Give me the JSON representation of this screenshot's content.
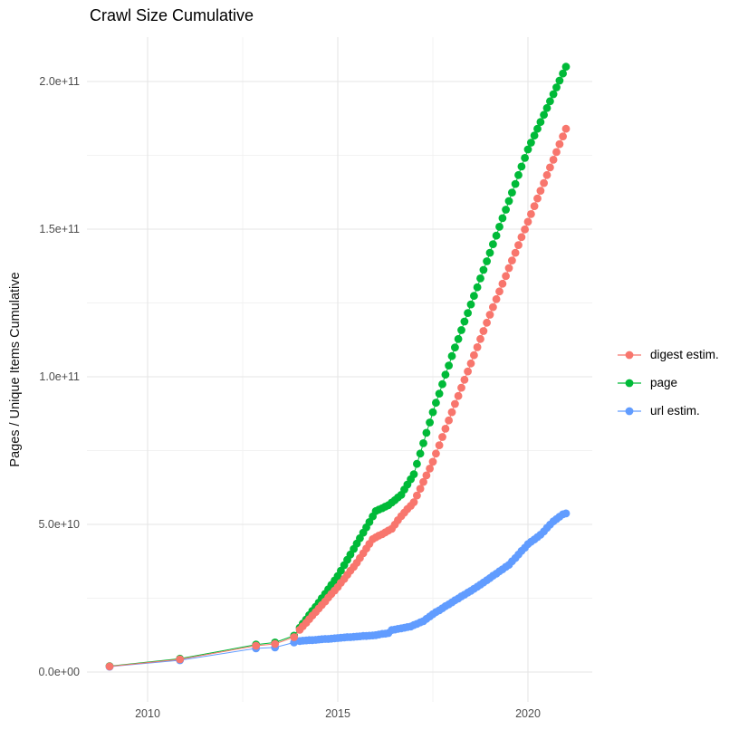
{
  "title": "Crawl Size Cumulative",
  "y_axis_title": "Pages / Unique Items Cumulative",
  "colors": {
    "digest": "#F8766D",
    "page": "#00BA38",
    "url": "#619CFF",
    "grid_major": "#e5e5e5",
    "grid_minor": "#f2f2f2",
    "axis_text": "#4d4d4d",
    "title_text": "#000000"
  },
  "legend": [
    {
      "id": "digest",
      "label": "digest estim.",
      "color": "#F8766D"
    },
    {
      "id": "page",
      "label": "page",
      "color": "#00BA38"
    },
    {
      "id": "url",
      "label": "url estim.",
      "color": "#619CFF"
    }
  ],
  "chart_data": {
    "type": "scatter",
    "title": "Crawl Size Cumulative",
    "xlabel": "",
    "ylabel": "Pages / Unique Items Cumulative",
    "y_unit_multiplier": 1000000000.0,
    "xlim": [
      2008.4,
      2021.7
    ],
    "ylim_e9": [
      -10,
      215
    ],
    "grid": true,
    "legend_position": "right",
    "x_ticks": [
      {
        "label": "2010",
        "value": 2010
      },
      {
        "label": "2015",
        "value": 2015
      },
      {
        "label": "2020",
        "value": 2020
      }
    ],
    "x_minor": [
      2012.5,
      2017.5
    ],
    "y_ticks": [
      {
        "label": "0.0e+00",
        "value": 0
      },
      {
        "label": "5.0e+10",
        "value": 50
      },
      {
        "label": "1.0e+11",
        "value": 100
      },
      {
        "label": "1.5e+11",
        "value": 150
      },
      {
        "label": "2.0e+11",
        "value": 200
      }
    ],
    "y_minor": [
      25,
      75,
      125,
      175
    ],
    "series": [
      {
        "name": "page",
        "color": "#00BA38",
        "points": [
          [
            2009.0,
            2.0
          ],
          [
            2010.85,
            4.5
          ],
          [
            2012.85,
            9.3
          ],
          [
            2013.35,
            10.0
          ],
          [
            2013.85,
            12.3
          ],
          [
            2014.0,
            15.0
          ],
          [
            2014.08,
            16.4
          ],
          [
            2014.17,
            17.8
          ],
          [
            2014.25,
            19.3
          ],
          [
            2014.33,
            20.7
          ],
          [
            2014.42,
            22.1
          ],
          [
            2014.5,
            23.5
          ],
          [
            2014.58,
            25.0
          ],
          [
            2014.67,
            26.5
          ],
          [
            2014.75,
            28.0
          ],
          [
            2014.83,
            29.5
          ],
          [
            2014.92,
            31.0
          ],
          [
            2015.0,
            32.5
          ],
          [
            2015.08,
            34.3
          ],
          [
            2015.17,
            36.2
          ],
          [
            2015.25,
            38.0
          ],
          [
            2015.33,
            39.8
          ],
          [
            2015.42,
            41.7
          ],
          [
            2015.5,
            43.5
          ],
          [
            2015.58,
            45.3
          ],
          [
            2015.67,
            47.2
          ],
          [
            2015.75,
            49.0
          ],
          [
            2015.83,
            50.8
          ],
          [
            2015.92,
            52.7
          ],
          [
            2016.0,
            54.5
          ],
          [
            2016.08,
            55.0
          ],
          [
            2016.17,
            55.5
          ],
          [
            2016.25,
            56.0
          ],
          [
            2016.33,
            56.5
          ],
          [
            2016.42,
            57.4
          ],
          [
            2016.5,
            58.2
          ],
          [
            2016.58,
            59.1
          ],
          [
            2016.67,
            60.0
          ],
          [
            2016.75,
            61.8
          ],
          [
            2016.83,
            63.5
          ],
          [
            2016.92,
            65.3
          ],
          [
            2017.0,
            67.0
          ],
          [
            2017.08,
            70.5
          ],
          [
            2017.17,
            74.0
          ],
          [
            2017.25,
            77.5
          ],
          [
            2017.33,
            81.0
          ],
          [
            2017.42,
            84.5
          ],
          [
            2017.5,
            88.0
          ],
          [
            2017.58,
            91.2
          ],
          [
            2017.67,
            94.3
          ],
          [
            2017.75,
            97.5
          ],
          [
            2017.83,
            100.7
          ],
          [
            2017.92,
            103.8
          ],
          [
            2018.0,
            107.0
          ],
          [
            2018.08,
            109.9
          ],
          [
            2018.17,
            112.8
          ],
          [
            2018.25,
            115.8
          ],
          [
            2018.33,
            118.7
          ],
          [
            2018.42,
            121.6
          ],
          [
            2018.5,
            124.5
          ],
          [
            2018.58,
            127.4
          ],
          [
            2018.67,
            130.3
          ],
          [
            2018.75,
            133.3
          ],
          [
            2018.83,
            136.2
          ],
          [
            2018.92,
            139.1
          ],
          [
            2019.0,
            142.0
          ],
          [
            2019.08,
            144.9
          ],
          [
            2019.17,
            147.8
          ],
          [
            2019.25,
            150.8
          ],
          [
            2019.33,
            153.7
          ],
          [
            2019.42,
            156.6
          ],
          [
            2019.5,
            159.5
          ],
          [
            2019.58,
            162.4
          ],
          [
            2019.67,
            165.3
          ],
          [
            2019.75,
            168.3
          ],
          [
            2019.83,
            171.2
          ],
          [
            2019.92,
            174.1
          ],
          [
            2020.0,
            177.0
          ],
          [
            2020.08,
            179.3
          ],
          [
            2020.17,
            181.7
          ],
          [
            2020.25,
            184.0
          ],
          [
            2020.33,
            186.3
          ],
          [
            2020.42,
            188.7
          ],
          [
            2020.5,
            191.0
          ],
          [
            2020.58,
            193.3
          ],
          [
            2020.67,
            195.7
          ],
          [
            2020.75,
            198.0
          ],
          [
            2020.83,
            200.3
          ],
          [
            2020.92,
            202.7
          ],
          [
            2021.0,
            205.0
          ]
        ]
      },
      {
        "name": "url estim.",
        "color": "#619CFF",
        "points": [
          [
            2009.0,
            1.8
          ],
          [
            2010.85,
            4.0
          ],
          [
            2012.85,
            8.0
          ],
          [
            2013.35,
            8.3
          ],
          [
            2013.85,
            10.0
          ],
          [
            2014.0,
            10.5
          ],
          [
            2014.08,
            10.6
          ],
          [
            2014.17,
            10.7
          ],
          [
            2014.25,
            10.8
          ],
          [
            2014.33,
            10.8
          ],
          [
            2014.42,
            10.9
          ],
          [
            2014.5,
            11.0
          ],
          [
            2014.58,
            11.1
          ],
          [
            2014.67,
            11.2
          ],
          [
            2014.75,
            11.2
          ],
          [
            2014.83,
            11.3
          ],
          [
            2014.92,
            11.4
          ],
          [
            2015.0,
            11.5
          ],
          [
            2015.08,
            11.6
          ],
          [
            2015.17,
            11.7
          ],
          [
            2015.25,
            11.8
          ],
          [
            2015.33,
            11.8
          ],
          [
            2015.42,
            11.9
          ],
          [
            2015.5,
            12.0
          ],
          [
            2015.58,
            12.1
          ],
          [
            2015.67,
            12.2
          ],
          [
            2015.75,
            12.2
          ],
          [
            2015.83,
            12.3
          ],
          [
            2015.92,
            12.4
          ],
          [
            2016.0,
            12.5
          ],
          [
            2016.08,
            12.7
          ],
          [
            2016.17,
            12.9
          ],
          [
            2016.25,
            13.0
          ],
          [
            2016.33,
            13.2
          ],
          [
            2016.42,
            14.2
          ],
          [
            2016.5,
            14.4
          ],
          [
            2016.58,
            14.6
          ],
          [
            2016.67,
            14.8
          ],
          [
            2016.75,
            15.0
          ],
          [
            2016.83,
            15.2
          ],
          [
            2016.92,
            15.4
          ],
          [
            2017.0,
            15.9
          ],
          [
            2017.08,
            16.3
          ],
          [
            2017.17,
            16.8
          ],
          [
            2017.25,
            17.2
          ],
          [
            2017.33,
            18.0
          ],
          [
            2017.42,
            18.8
          ],
          [
            2017.5,
            19.6
          ],
          [
            2017.58,
            20.3
          ],
          [
            2017.67,
            20.9
          ],
          [
            2017.75,
            21.6
          ],
          [
            2017.83,
            22.3
          ],
          [
            2017.92,
            22.9
          ],
          [
            2018.0,
            23.6
          ],
          [
            2018.08,
            24.3
          ],
          [
            2018.17,
            24.9
          ],
          [
            2018.25,
            25.6
          ],
          [
            2018.33,
            26.2
          ],
          [
            2018.42,
            26.9
          ],
          [
            2018.5,
            27.5
          ],
          [
            2018.58,
            28.2
          ],
          [
            2018.67,
            28.9
          ],
          [
            2018.75,
            29.6
          ],
          [
            2018.83,
            30.3
          ],
          [
            2018.92,
            31.1
          ],
          [
            2019.0,
            31.8
          ],
          [
            2019.08,
            32.6
          ],
          [
            2019.17,
            33.3
          ],
          [
            2019.25,
            34.1
          ],
          [
            2019.33,
            34.8
          ],
          [
            2019.42,
            35.6
          ],
          [
            2019.5,
            36.3
          ],
          [
            2019.58,
            37.5
          ],
          [
            2019.67,
            38.6
          ],
          [
            2019.75,
            39.8
          ],
          [
            2019.83,
            41.0
          ],
          [
            2019.92,
            42.1
          ],
          [
            2020.0,
            43.3
          ],
          [
            2020.08,
            44.1
          ],
          [
            2020.17,
            44.9
          ],
          [
            2020.25,
            45.7
          ],
          [
            2020.33,
            46.5
          ],
          [
            2020.42,
            47.6
          ],
          [
            2020.5,
            48.8
          ],
          [
            2020.58,
            49.9
          ],
          [
            2020.67,
            51.0
          ],
          [
            2020.75,
            51.8
          ],
          [
            2020.83,
            52.6
          ],
          [
            2020.92,
            53.4
          ],
          [
            2021.0,
            53.7
          ]
        ]
      },
      {
        "name": "digest estim.",
        "color": "#F8766D",
        "points": [
          [
            2009.0,
            1.9
          ],
          [
            2010.85,
            4.3
          ],
          [
            2012.85,
            8.9
          ],
          [
            2013.35,
            9.5
          ],
          [
            2013.85,
            11.8
          ],
          [
            2014.0,
            14.3
          ],
          [
            2014.08,
            15.5
          ],
          [
            2014.17,
            16.7
          ],
          [
            2014.25,
            17.9
          ],
          [
            2014.33,
            19.1
          ],
          [
            2014.42,
            20.3
          ],
          [
            2014.5,
            21.5
          ],
          [
            2014.58,
            22.7
          ],
          [
            2014.67,
            23.9
          ],
          [
            2014.75,
            25.2
          ],
          [
            2014.83,
            26.4
          ],
          [
            2014.92,
            27.6
          ],
          [
            2015.0,
            28.8
          ],
          [
            2015.08,
            30.2
          ],
          [
            2015.17,
            31.5
          ],
          [
            2015.25,
            32.9
          ],
          [
            2015.33,
            34.3
          ],
          [
            2015.42,
            35.6
          ],
          [
            2015.5,
            37.0
          ],
          [
            2015.58,
            38.6
          ],
          [
            2015.67,
            40.2
          ],
          [
            2015.75,
            41.8
          ],
          [
            2015.83,
            43.4
          ],
          [
            2015.92,
            45.0
          ],
          [
            2016.0,
            45.6
          ],
          [
            2016.08,
            46.2
          ],
          [
            2016.17,
            46.7
          ],
          [
            2016.25,
            47.3
          ],
          [
            2016.33,
            47.9
          ],
          [
            2016.42,
            48.5
          ],
          [
            2016.5,
            49.9
          ],
          [
            2016.58,
            51.4
          ],
          [
            2016.67,
            52.8
          ],
          [
            2016.75,
            54.0
          ],
          [
            2016.83,
            55.2
          ],
          [
            2016.92,
            56.3
          ],
          [
            2017.0,
            57.5
          ],
          [
            2017.08,
            59.8
          ],
          [
            2017.17,
            62.1
          ],
          [
            2017.25,
            64.4
          ],
          [
            2017.33,
            66.6
          ],
          [
            2017.42,
            68.9
          ],
          [
            2017.5,
            71.2
          ],
          [
            2017.58,
            74.0
          ],
          [
            2017.67,
            76.8
          ],
          [
            2017.75,
            79.6
          ],
          [
            2017.83,
            82.4
          ],
          [
            2017.92,
            85.2
          ],
          [
            2018.0,
            88.0
          ],
          [
            2018.08,
            90.8
          ],
          [
            2018.17,
            93.5
          ],
          [
            2018.25,
            96.3
          ],
          [
            2018.33,
            99.0
          ],
          [
            2018.42,
            101.8
          ],
          [
            2018.5,
            104.5
          ],
          [
            2018.58,
            107.3
          ],
          [
            2018.67,
            110.0
          ],
          [
            2018.75,
            112.8
          ],
          [
            2018.83,
            115.5
          ],
          [
            2018.92,
            118.3
          ],
          [
            2019.0,
            121.0
          ],
          [
            2019.08,
            123.6
          ],
          [
            2019.17,
            126.3
          ],
          [
            2019.25,
            128.9
          ],
          [
            2019.33,
            131.5
          ],
          [
            2019.42,
            134.1
          ],
          [
            2019.5,
            136.8
          ],
          [
            2019.58,
            139.4
          ],
          [
            2019.67,
            142.0
          ],
          [
            2019.75,
            144.6
          ],
          [
            2019.83,
            147.3
          ],
          [
            2019.92,
            149.9
          ],
          [
            2020.0,
            152.5
          ],
          [
            2020.08,
            155.1
          ],
          [
            2020.17,
            157.8
          ],
          [
            2020.25,
            160.4
          ],
          [
            2020.33,
            163.0
          ],
          [
            2020.42,
            165.6
          ],
          [
            2020.5,
            168.3
          ],
          [
            2020.58,
            170.9
          ],
          [
            2020.67,
            173.5
          ],
          [
            2020.75,
            176.1
          ],
          [
            2020.83,
            178.8
          ],
          [
            2020.92,
            181.4
          ],
          [
            2021.0,
            184.0
          ]
        ]
      }
    ]
  }
}
